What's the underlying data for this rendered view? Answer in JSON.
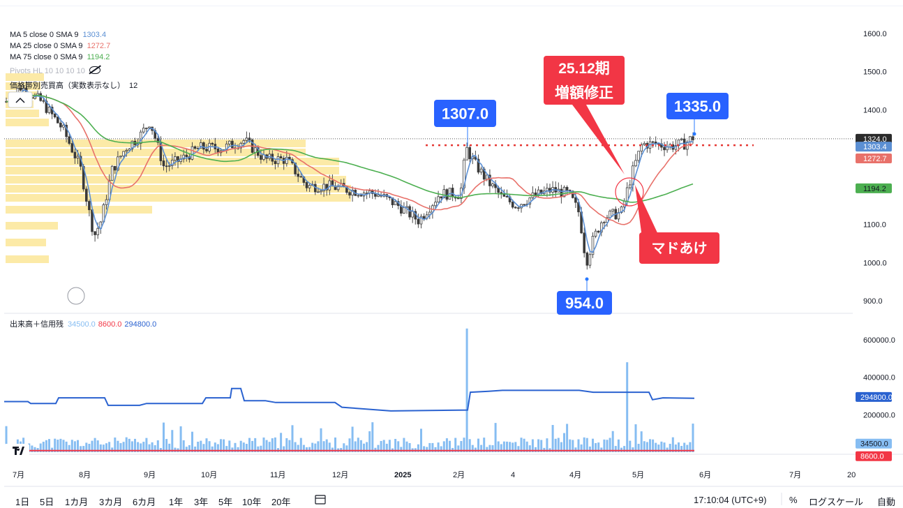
{
  "legend": {
    "ma5": {
      "label": "MA 5 close 0 SMA 9",
      "value": "1303.4",
      "color": "#5b8fd3"
    },
    "ma25": {
      "label": "MA 25 close 0 SMA 9",
      "value": "1272.7",
      "color": "#e8716a"
    },
    "ma75": {
      "label": "MA 75 close 0 SMA 9",
      "value": "1194.2",
      "color": "#4caf50"
    },
    "pivots": {
      "label": "Pivots HL 10 10 10 10"
    },
    "vp": {
      "label": "価格帯別売買高（実数表示なし）",
      "value": "12"
    },
    "vol": {
      "label": "出来高＋信用残",
      "v1": "34500.0",
      "v2": "8600.0",
      "v3": "294800.0",
      "c1": "#86bdf2",
      "c2": "#f23645",
      "c3": "#2a62d0"
    }
  },
  "price_axis": {
    "ticks": [
      "1600.0",
      "1500.0",
      "1400.0",
      "1300.0",
      "1100.0",
      "1000.0",
      "900.0"
    ],
    "tags": {
      "last": "1324.0",
      "ma5": "1303.4",
      "ma25": "1272.7",
      "ma75": "1194.2"
    }
  },
  "volume_axis": {
    "ticks": [
      "600000.0",
      "400000.0",
      "200000.0"
    ],
    "tags": {
      "margin": "294800.0",
      "vol": "34500.0",
      "ratio": "8600.0"
    }
  },
  "time_axis": [
    "7月",
    "8月",
    "9月",
    "10月",
    "11月",
    "12月",
    "2025",
    "2月",
    "4",
    "4月",
    "5月",
    "6月",
    "7月",
    "20"
  ],
  "annotations": {
    "high1": "1307.0",
    "high2": "1335.0",
    "low": "954.0",
    "revision": "25.12期\n増額修正",
    "gap": "マドあけ"
  },
  "bottom_bar": {
    "ranges": [
      "1日",
      "5日",
      "1カ月",
      "3カ月",
      "6カ月",
      "1年",
      "3年",
      "5年",
      "10年",
      "20年"
    ],
    "time": "17:10:04 (UTC+9)",
    "percent": "%",
    "log": "ログスケール",
    "auto": "自動"
  },
  "chart_data": {
    "type": "candlestick",
    "period": "2024-07 to 2025-05",
    "ylim": [
      870,
      1640
    ],
    "close_monthly_approx": [
      {
        "x": "7月",
        "close": 1420
      },
      {
        "x": "8月",
        "close": 1110
      },
      {
        "x": "9月",
        "close": 1330
      },
      {
        "x": "10月",
        "close": 1310
      },
      {
        "x": "11月",
        "close": 1290
      },
      {
        "x": "12月",
        "close": 1200
      },
      {
        "x": "2025",
        "close": 1140
      },
      {
        "x": "2月",
        "close": 1230
      },
      {
        "x": "4",
        "close": 1180
      },
      {
        "x": "4月",
        "close": 1080
      },
      {
        "x": "5月",
        "close": 1310
      },
      {
        "x": "6月",
        "close": 1324
      }
    ],
    "ma_latest": {
      "MA5": 1303.4,
      "MA25": 1272.7,
      "MA75": 1194.2
    },
    "volume_ylim": [
      0,
      700000
    ],
    "volume_latest": 34500,
    "margin_latest": 294800,
    "ratio_latest": 8600
  }
}
